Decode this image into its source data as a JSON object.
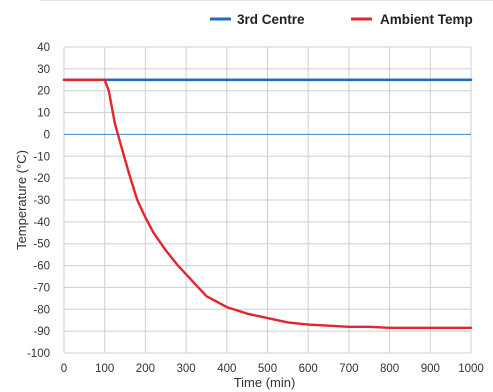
{
  "chart_data": {
    "type": "line",
    "xlabel": "Time (min)",
    "ylabel": "Temperature (°C)",
    "xlim": [
      0,
      1000
    ],
    "ylim": [
      -100,
      40
    ],
    "x_ticks": [
      "0",
      "100",
      "200",
      "300",
      "400",
      "500",
      "600",
      "700",
      "800",
      "900",
      "1000"
    ],
    "y_ticks": [
      "40",
      "30",
      "20",
      "10",
      "0",
      "-10",
      "-20",
      "-30",
      "-40",
      "-50",
      "-60",
      "-70",
      "-80",
      "-90",
      "-100"
    ],
    "grid": true,
    "legend_position": "top-right",
    "series": [
      {
        "name": "3rd Centre",
        "color": "#1f6fbd",
        "points": [
          [
            0,
            25
          ],
          [
            100,
            25
          ],
          [
            200,
            25
          ],
          [
            300,
            25
          ],
          [
            400,
            25
          ],
          [
            500,
            25
          ],
          [
            600,
            25
          ],
          [
            700,
            25
          ],
          [
            800,
            25
          ],
          [
            900,
            25
          ],
          [
            1000,
            25
          ]
        ]
      },
      {
        "name": "Ambient Temp",
        "color": "#e2262c",
        "points": [
          [
            0,
            25
          ],
          [
            100,
            25
          ],
          [
            110,
            20
          ],
          [
            125,
            5
          ],
          [
            140,
            -5
          ],
          [
            160,
            -18
          ],
          [
            180,
            -30
          ],
          [
            200,
            -38
          ],
          [
            220,
            -45
          ],
          [
            250,
            -53
          ],
          [
            280,
            -60
          ],
          [
            300,
            -64
          ],
          [
            330,
            -70
          ],
          [
            350,
            -74
          ],
          [
            380,
            -77
          ],
          [
            400,
            -79
          ],
          [
            450,
            -82
          ],
          [
            500,
            -84
          ],
          [
            550,
            -86
          ],
          [
            600,
            -87
          ],
          [
            650,
            -87.5
          ],
          [
            700,
            -88
          ],
          [
            750,
            -88
          ],
          [
            800,
            -88.5
          ],
          [
            900,
            -88.5
          ],
          [
            1000,
            -88.5
          ]
        ]
      }
    ]
  }
}
